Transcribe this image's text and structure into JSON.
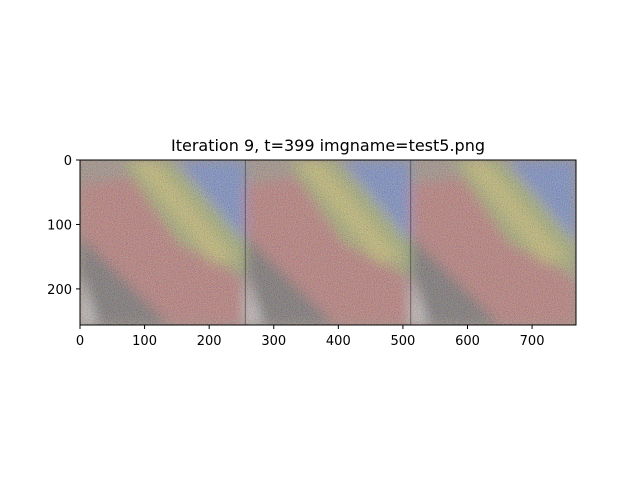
{
  "chart_data": {
    "type": "image",
    "title": "Iteration 9, t=399 imgname=test5.png",
    "xlabel": "",
    "ylabel": "",
    "xlim": [
      0,
      768
    ],
    "ylim": [
      256,
      0
    ],
    "xticks": [
      0,
      100,
      200,
      300,
      400,
      500,
      600,
      700
    ],
    "yticks": [
      0,
      100,
      200
    ],
    "grid": false,
    "panels": [
      {
        "x_range": [
          0,
          256
        ],
        "content": "noisy rendered texture"
      },
      {
        "x_range": [
          256,
          512
        ],
        "content": "noisy rendered texture"
      },
      {
        "x_range": [
          512,
          768
        ],
        "content": "noisy rendered texture"
      }
    ]
  }
}
